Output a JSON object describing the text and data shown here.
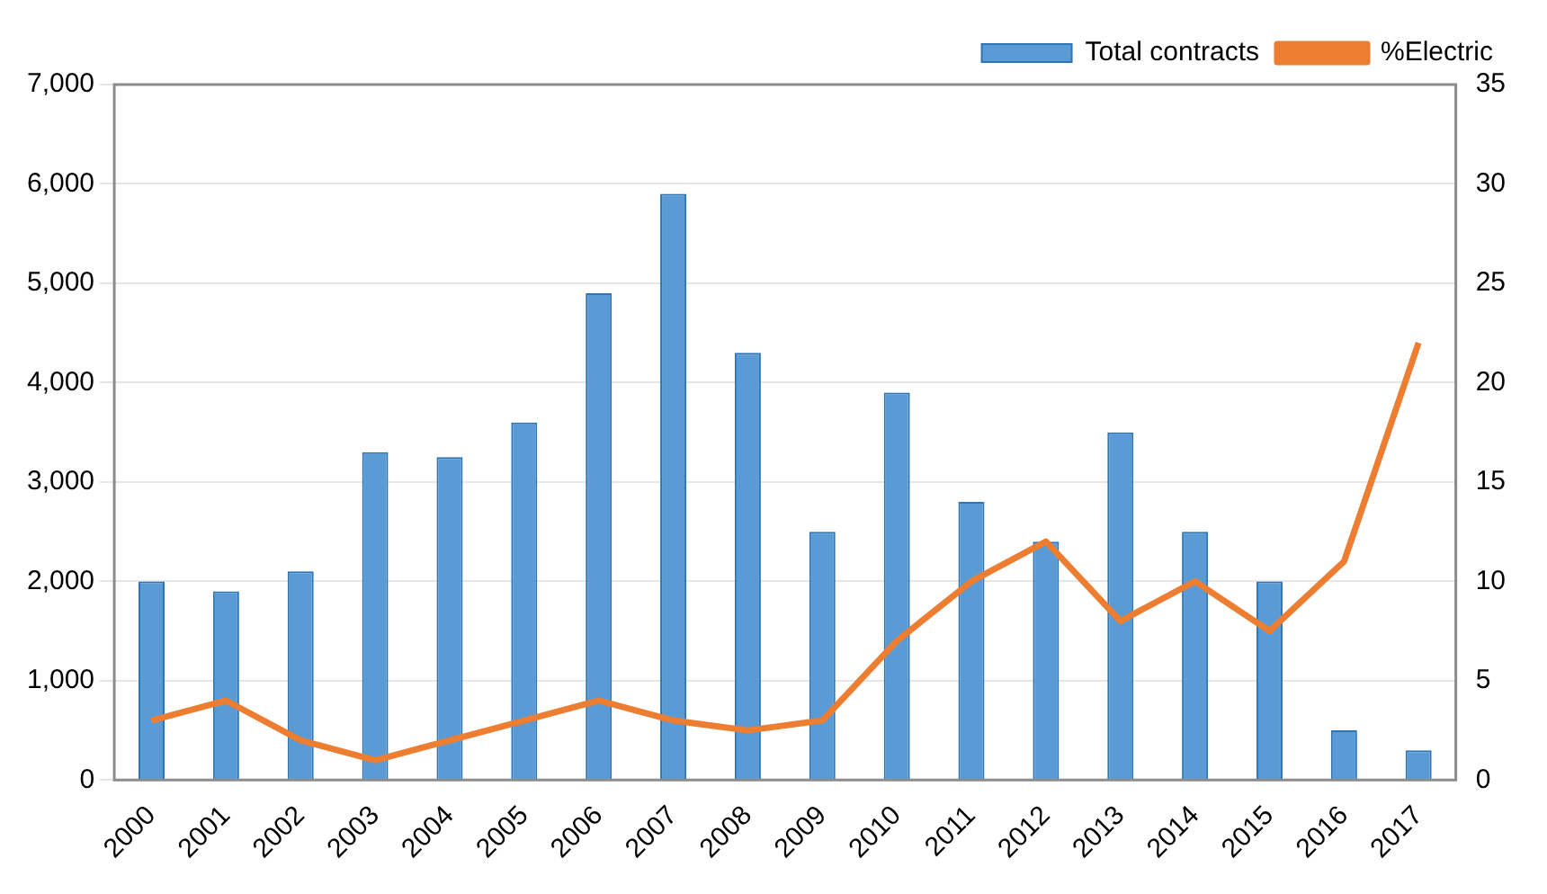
{
  "chart_data": {
    "type": "bar",
    "categories": [
      "2000",
      "2001",
      "2002",
      "2003",
      "2004",
      "2005",
      "2006",
      "2007",
      "2008",
      "2009",
      "2010",
      "2011",
      "2012",
      "2013",
      "2014",
      "2015",
      "2016",
      "2017"
    ],
    "series": [
      {
        "name": "Total contracts",
        "color": "#5b9bd5",
        "values": [
          2000,
          1900,
          2100,
          3300,
          3250,
          3600,
          4900,
          5900,
          4300,
          2500,
          3900,
          2800,
          2400,
          3500,
          2500,
          2000,
          500,
          300
        ]
      },
      {
        "name": "%Electric",
        "type": "line",
        "axis": "y2",
        "color": "#ed7d31",
        "values": [
          3,
          4,
          2,
          1,
          2,
          3,
          4,
          3,
          2.5,
          3,
          7,
          10,
          12,
          8,
          10,
          7.5,
          11,
          22
        ]
      }
    ],
    "ylim": [
      0,
      7000
    ],
    "yticks": [
      {
        "value": 0,
        "label": "0"
      },
      {
        "value": 1000,
        "label": "1,000"
      },
      {
        "value": 2000,
        "label": "2,000"
      },
      {
        "value": 3000,
        "label": "3,000"
      },
      {
        "value": 4000,
        "label": "4,000"
      },
      {
        "value": 5000,
        "label": "5,000"
      },
      {
        "value": 6000,
        "label": "6,000"
      },
      {
        "value": 7000,
        "label": "7,000"
      }
    ],
    "y2lim": [
      0,
      35
    ],
    "y2ticks": [
      0,
      5,
      10,
      15,
      20,
      25,
      30,
      35
    ],
    "grid": "y",
    "legend": "top right",
    "marker": "none"
  }
}
